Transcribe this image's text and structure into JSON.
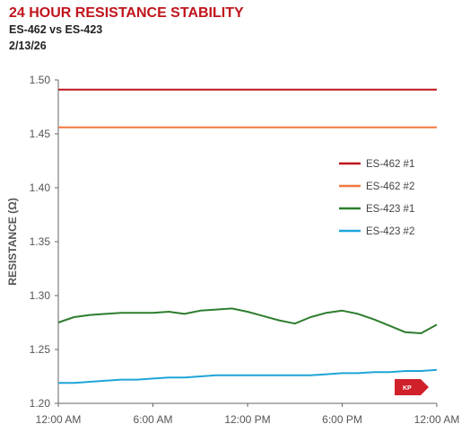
{
  "header": {
    "title": "24 HOUR RESISTANCE STABILITY",
    "subtitle": "ES-462 vs ES-423",
    "date": "2/13/26"
  },
  "badge": {
    "text": "KP",
    "color": "#d0202a"
  },
  "chart_data": {
    "type": "line",
    "title": "24 HOUR RESISTANCE STABILITY",
    "subtitle": "ES-462 vs ES-423",
    "ylabel": "RESISTANCE (Ω)",
    "xlabel": "",
    "ylim": [
      1.2,
      1.5
    ],
    "yticks": [
      "1.50",
      "1.45",
      "1.40",
      "1.35",
      "1.30",
      "1.25",
      "1.20"
    ],
    "xlim": [
      0,
      24
    ],
    "xticks": [
      {
        "hour": 0,
        "label": "12:00 AM"
      },
      {
        "hour": 6,
        "label": "6:00 AM"
      },
      {
        "hour": 12,
        "label": "12:00 PM"
      },
      {
        "hour": 18,
        "label": "6:00 PM"
      },
      {
        "hour": 24,
        "label": "12:00 AM"
      }
    ],
    "grid": false,
    "legend_position": "right",
    "x": [
      0,
      1,
      2,
      3,
      4,
      5,
      6,
      7,
      8,
      9,
      10,
      11,
      12,
      13,
      14,
      15,
      16,
      17,
      18,
      19,
      20,
      21,
      22,
      23,
      24
    ],
    "series": [
      {
        "name": "ES-462 #1",
        "color": "#c0141c",
        "values": [
          1.491,
          1.491,
          1.491,
          1.491,
          1.491,
          1.491,
          1.491,
          1.491,
          1.491,
          1.491,
          1.491,
          1.491,
          1.491,
          1.491,
          1.491,
          1.491,
          1.491,
          1.491,
          1.491,
          1.491,
          1.491,
          1.491,
          1.491,
          1.491,
          1.491
        ]
      },
      {
        "name": "ES-462 #2",
        "color": "#f0783c",
        "values": [
          1.456,
          1.456,
          1.456,
          1.456,
          1.456,
          1.456,
          1.456,
          1.456,
          1.456,
          1.456,
          1.456,
          1.456,
          1.456,
          1.456,
          1.456,
          1.456,
          1.456,
          1.456,
          1.456,
          1.456,
          1.456,
          1.456,
          1.456,
          1.456,
          1.456
        ]
      },
      {
        "name": "ES-423 #1",
        "color": "#2e7d2e",
        "values": [
          1.275,
          1.28,
          1.282,
          1.283,
          1.284,
          1.284,
          1.284,
          1.285,
          1.283,
          1.286,
          1.287,
          1.288,
          1.285,
          1.281,
          1.277,
          1.274,
          1.28,
          1.284,
          1.286,
          1.283,
          1.278,
          1.272,
          1.266,
          1.265,
          1.273
        ]
      },
      {
        "name": "ES-423 #2",
        "color": "#1ea5d8",
        "values": [
          1.219,
          1.219,
          1.22,
          1.221,
          1.222,
          1.222,
          1.223,
          1.224,
          1.224,
          1.225,
          1.226,
          1.226,
          1.226,
          1.226,
          1.226,
          1.226,
          1.226,
          1.227,
          1.228,
          1.228,
          1.229,
          1.229,
          1.23,
          1.23,
          1.231
        ]
      }
    ]
  }
}
